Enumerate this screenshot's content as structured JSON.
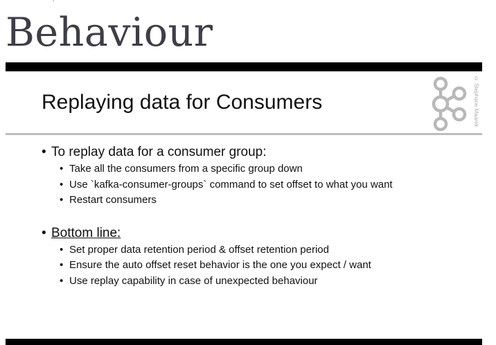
{
  "page": {
    "heading": "Behaviour"
  },
  "slide": {
    "title": "Replaying data for Consumers",
    "copyright": "© Stephane Maarek",
    "sections": [
      {
        "heading": "To replay data for a consumer group:",
        "items": [
          "Take all the consumers from a specific group down",
          "Use `kafka-consumer-groups` command to set offset to what you want",
          "Restart consumers"
        ]
      },
      {
        "heading": "Bottom line:",
        "items": [
          "Set proper data retention period & offset retention period",
          "Ensure the auto offset reset behavior is the one you expect / want",
          "Use replay capability in case of unexpected behaviour"
        ]
      }
    ]
  },
  "colors": {
    "heading": "#3d3e47",
    "bars": "#000000",
    "divider": "#bdbdbd",
    "logo": "#b8b8b8"
  },
  "icons": {
    "logo": "kafka-logo-icon"
  }
}
